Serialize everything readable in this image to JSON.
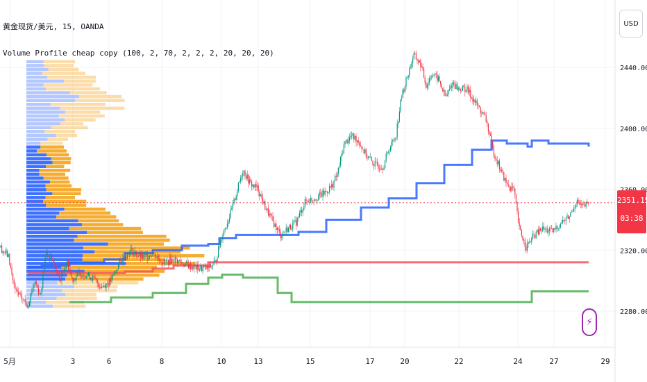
{
  "header": {
    "symbol_line": "黄金现货/美元, 15, OANDA",
    "indicator_line": "Volume Profile cheap copy (100, 2, 70, 2, 2, 2, 20, 20, 20)"
  },
  "currency_button": "USD",
  "last_price": {
    "price": "2351.155",
    "countdown": "03:38"
  },
  "alert_icon": "lightning-bolt-icon",
  "colors": {
    "price_line_color": "#f23645",
    "poc_line": "#f7525f",
    "vah_line": "#2962ff",
    "val_line": "#4caf50",
    "volume_up": "#f59e0b",
    "volume_down": "#2962ff",
    "candle_up": "#089981",
    "candle_down": "#f23645"
  },
  "chart_data": {
    "type": "candlestick",
    "title": "",
    "x_ticks": [
      "5月",
      "3",
      "6",
      "8",
      "10",
      "13",
      "15",
      "17",
      "20",
      "22",
      "24",
      "27",
      "29"
    ],
    "y_ticks": [
      2280.0,
      2320.0,
      2360.0,
      2400.0,
      2440.0
    ],
    "y_tick_labels": [
      "2280.000",
      "2320.000",
      "2360.000",
      "2400.000",
      "2440.000"
    ],
    "ylim": [
      2260,
      2470
    ],
    "grid": true,
    "last_price": 2351.155,
    "price_path": [
      [
        0,
        2322
      ],
      [
        12,
        2316
      ],
      [
        22,
        2293
      ],
      [
        40,
        2284
      ],
      [
        50,
        2300
      ],
      [
        58,
        2290
      ],
      [
        66,
        2318
      ],
      [
        75,
        2314
      ],
      [
        86,
        2300
      ],
      [
        96,
        2313
      ],
      [
        104,
        2301
      ],
      [
        116,
        2305
      ],
      [
        130,
        2303
      ],
      [
        146,
        2296
      ],
      [
        160,
        2300
      ],
      [
        172,
        2312
      ],
      [
        188,
        2320
      ],
      [
        205,
        2315
      ],
      [
        220,
        2318
      ],
      [
        236,
        2312
      ],
      [
        252,
        2314
      ],
      [
        270,
        2310
      ],
      [
        288,
        2308
      ],
      [
        300,
        2308
      ],
      [
        310,
        2312
      ],
      [
        320,
        2330
      ],
      [
        333,
        2345
      ],
      [
        342,
        2360
      ],
      [
        350,
        2373
      ],
      [
        360,
        2364
      ],
      [
        372,
        2360
      ],
      [
        382,
        2348
      ],
      [
        394,
        2338
      ],
      [
        404,
        2330
      ],
      [
        414,
        2334
      ],
      [
        426,
        2338
      ],
      [
        440,
        2352
      ],
      [
        452,
        2354
      ],
      [
        466,
        2357
      ],
      [
        478,
        2362
      ],
      [
        486,
        2370
      ],
      [
        496,
        2390
      ],
      [
        506,
        2395
      ],
      [
        516,
        2392
      ],
      [
        528,
        2382
      ],
      [
        540,
        2376
      ],
      [
        552,
        2375
      ],
      [
        560,
        2386
      ],
      [
        570,
        2395
      ],
      [
        578,
        2420
      ],
      [
        588,
        2436
      ],
      [
        596,
        2448
      ],
      [
        606,
        2442
      ],
      [
        614,
        2428
      ],
      [
        622,
        2436
      ],
      [
        632,
        2432
      ],
      [
        642,
        2420
      ],
      [
        652,
        2430
      ],
      [
        660,
        2426
      ],
      [
        672,
        2426
      ],
      [
        686,
        2416
      ],
      [
        700,
        2406
      ],
      [
        710,
        2386
      ],
      [
        720,
        2374
      ],
      [
        730,
        2363
      ],
      [
        740,
        2360
      ],
      [
        748,
        2334
      ],
      [
        758,
        2322
      ],
      [
        770,
        2330
      ],
      [
        782,
        2334
      ],
      [
        796,
        2332
      ],
      [
        808,
        2338
      ],
      [
        820,
        2342
      ],
      [
        830,
        2352
      ],
      [
        840,
        2348
      ],
      [
        848,
        2351
      ]
    ],
    "overlay_lines": [
      {
        "role": "value-area-high",
        "points": [
          [
            40,
            2309
          ],
          [
            60,
            2310
          ],
          [
            100,
            2312
          ],
          [
            150,
            2314
          ],
          [
            180,
            2318
          ],
          [
            220,
            2320
          ],
          [
            262,
            2323
          ],
          [
            300,
            2324
          ],
          [
            316,
            2328
          ],
          [
            340,
            2330
          ],
          [
            380,
            2330
          ],
          [
            430,
            2332
          ],
          [
            470,
            2340
          ],
          [
            520,
            2348
          ],
          [
            560,
            2354
          ],
          [
            600,
            2364
          ],
          [
            640,
            2376
          ],
          [
            680,
            2386
          ],
          [
            708,
            2392
          ],
          [
            730,
            2390
          ],
          [
            760,
            2388
          ],
          [
            766,
            2392
          ],
          [
            790,
            2390
          ],
          [
            848,
            2388
          ]
        ]
      },
      {
        "role": "point-of-control",
        "points": [
          [
            40,
            2305
          ],
          [
            180,
            2306
          ],
          [
            220,
            2308
          ],
          [
            250,
            2310
          ],
          [
            300,
            2312
          ],
          [
            848,
            2312
          ]
        ]
      },
      {
        "role": "value-area-low",
        "points": [
          [
            100,
            2286
          ],
          [
            160,
            2289
          ],
          [
            220,
            2292
          ],
          [
            268,
            2298
          ],
          [
            300,
            2302
          ],
          [
            320,
            2304
          ],
          [
            350,
            2302
          ],
          [
            400,
            2292
          ],
          [
            420,
            2286
          ],
          [
            500,
            2286
          ],
          [
            760,
            2286
          ],
          [
            766,
            2293
          ],
          [
            848,
            2293
          ]
        ]
      }
    ],
    "volume_profile": {
      "price_min": 2282,
      "price_max": 2445,
      "rows": 64,
      "max_length": 260
    }
  }
}
